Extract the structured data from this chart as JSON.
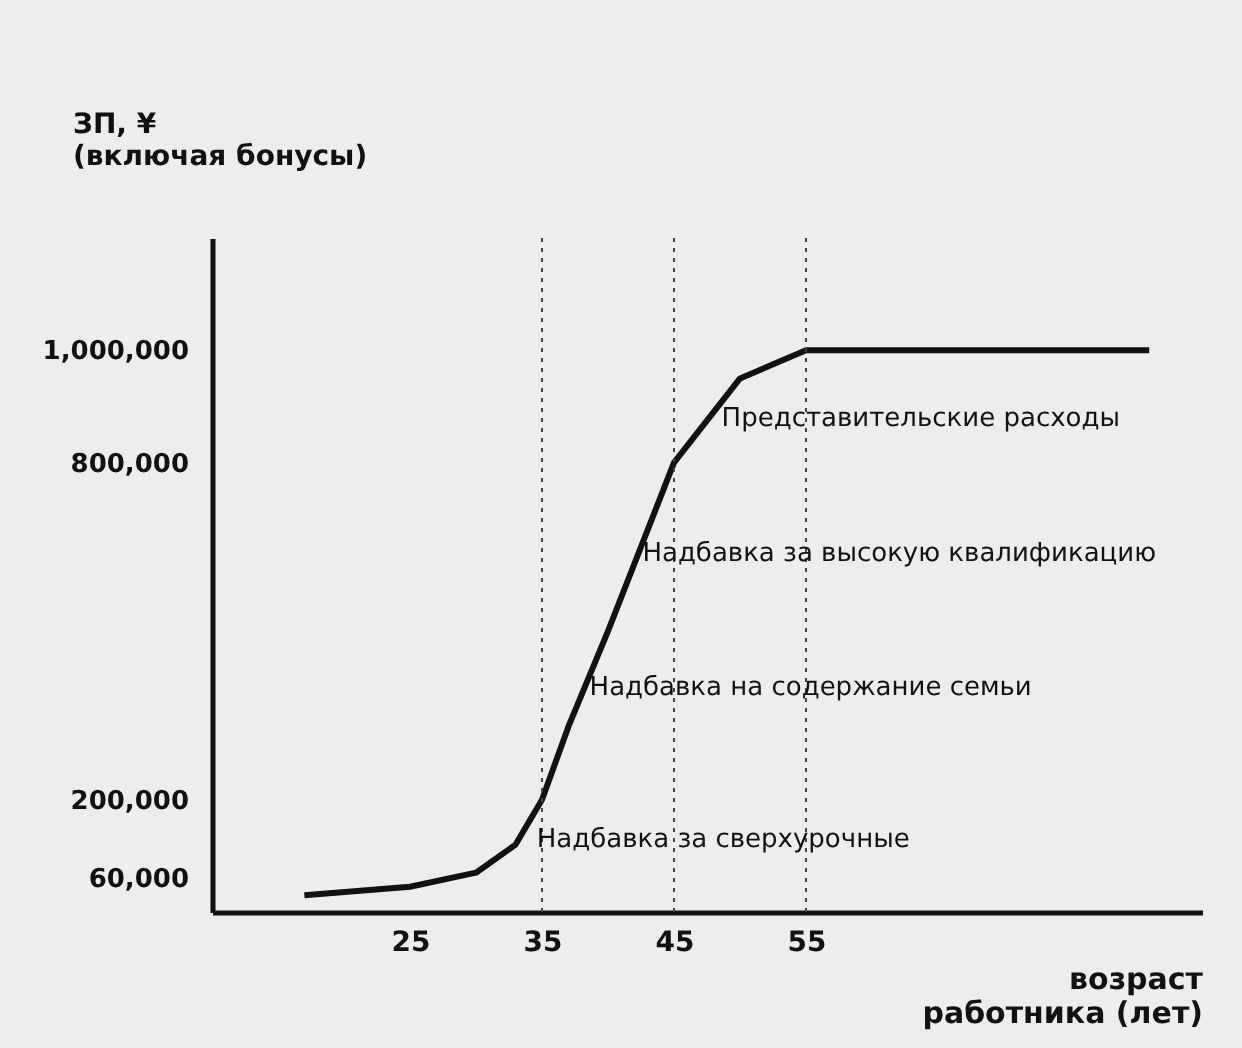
{
  "chart_data": {
    "type": "line",
    "xlabel": "возраст\nработника (лет)",
    "ylabel": "ЗП, ¥\n(включая бонусы)",
    "x": [
      17,
      25,
      30,
      33,
      35,
      37,
      40,
      45,
      50,
      55,
      81
    ],
    "series": [
      {
        "color": "#111111",
        "values": [
          30000,
          45000,
          70000,
          120000,
          200000,
          330000,
          500000,
          800000,
          950000,
          1000000,
          1000000
        ]
      }
    ],
    "xlim": [
      10,
      85
    ],
    "xticks": [
      25,
      35,
      45,
      55
    ],
    "ylim": [
      0,
      1200000
    ],
    "yticks": [
      {
        "value": 60000,
        "label": "60,000"
      },
      {
        "value": 200000,
        "label": "200,000"
      },
      {
        "value": 800000,
        "label": "800,000"
      },
      {
        "value": 1000000,
        "label": "1,000,000"
      }
    ],
    "ref_lines": [
      {
        "axis": "x",
        "value": 35,
        "line_style": "dotted"
      },
      {
        "axis": "x",
        "value": 45,
        "line_style": "dotted"
      },
      {
        "axis": "x",
        "value": 55,
        "line_style": "dotted"
      }
    ],
    "annotations": [
      {
        "text": "Надбавка за сверхурочные",
        "x": 34,
        "y": 130000
      },
      {
        "text": "Надбавка на содержание семьи",
        "x": 38,
        "y": 400000
      },
      {
        "text": "Надбавка за высокую квалификацию",
        "x": 42,
        "y": 640000
      },
      {
        "text": "Представительские расходы",
        "x": 48,
        "y": 880000
      }
    ],
    "grid": false,
    "marker": "none",
    "line_style": "solid"
  }
}
